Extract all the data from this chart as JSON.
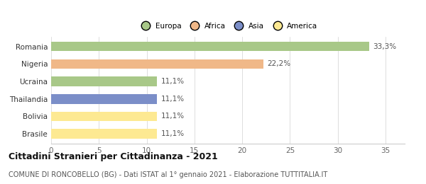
{
  "categories": [
    "Brasile",
    "Bolivia",
    "Thailandia",
    "Ucraina",
    "Nigeria",
    "Romania"
  ],
  "values": [
    11.1,
    11.1,
    11.1,
    11.1,
    22.2,
    33.3
  ],
  "labels": [
    "11,1%",
    "11,1%",
    "11,1%",
    "11,1%",
    "22,2%",
    "33,3%"
  ],
  "colors": [
    "#fde992",
    "#fde992",
    "#7b8ec8",
    "#a8c888",
    "#f0b888",
    "#a8c888"
  ],
  "legend": [
    {
      "label": "Europa",
      "color": "#a8c888"
    },
    {
      "label": "Africa",
      "color": "#f0b888"
    },
    {
      "label": "Asia",
      "color": "#7b8ec8"
    },
    {
      "label": "America",
      "color": "#fde992"
    }
  ],
  "xlim": [
    0,
    37
  ],
  "xticks": [
    0,
    5,
    10,
    15,
    20,
    25,
    30,
    35
  ],
  "title": "Cittadini Stranieri per Cittadinanza - 2021",
  "subtitle": "COMUNE DI RONCOBELLO (BG) - Dati ISTAT al 1° gennaio 2021 - Elaborazione TUTTITALIA.IT",
  "title_fontsize": 9,
  "subtitle_fontsize": 7,
  "label_fontsize": 7.5,
  "tick_fontsize": 7.5,
  "bar_height": 0.55,
  "background_color": "#ffffff"
}
